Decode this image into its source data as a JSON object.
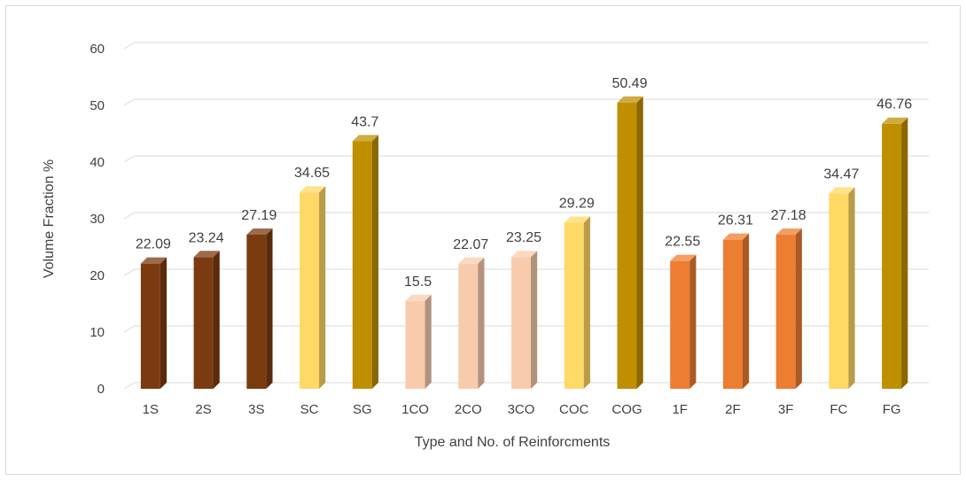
{
  "chart_data": {
    "type": "bar",
    "style": "3d-column",
    "xlabel": "Type and No. of Reinforcments",
    "ylabel": "Volume Fraction %",
    "ylim": [
      0,
      60
    ],
    "yticks": [
      0,
      10,
      20,
      30,
      40,
      50,
      60
    ],
    "grid": true,
    "categories": [
      "1S",
      "2S",
      "3S",
      "SC",
      "SG",
      "1CO",
      "2CO",
      "3CO",
      "COC",
      "COG",
      "1F",
      "2F",
      "3F",
      "FC",
      "FG"
    ],
    "values": [
      22.09,
      23.24,
      27.19,
      34.65,
      43.7,
      15.5,
      22.07,
      23.25,
      29.29,
      50.49,
      22.55,
      26.31,
      27.18,
      34.47,
      46.76
    ],
    "data_labels": [
      "22.09",
      "23.24",
      "27.19",
      "34.65",
      "43.7",
      "15.5",
      "22.07",
      "23.25",
      "29.29",
      "50.49",
      "22.55",
      "26.31",
      "27.18",
      "34.47",
      "46.76"
    ],
    "colors": [
      "#7B3A10",
      "#7B3A10",
      "#7B3A10",
      "#FFD966",
      "#BF8F00",
      "#F8CBAD",
      "#F8CBAD",
      "#F8CBAD",
      "#FFD966",
      "#BF8F00",
      "#ED7D31",
      "#ED7D31",
      "#ED7D31",
      "#FFD966",
      "#BF8F00"
    ]
  }
}
